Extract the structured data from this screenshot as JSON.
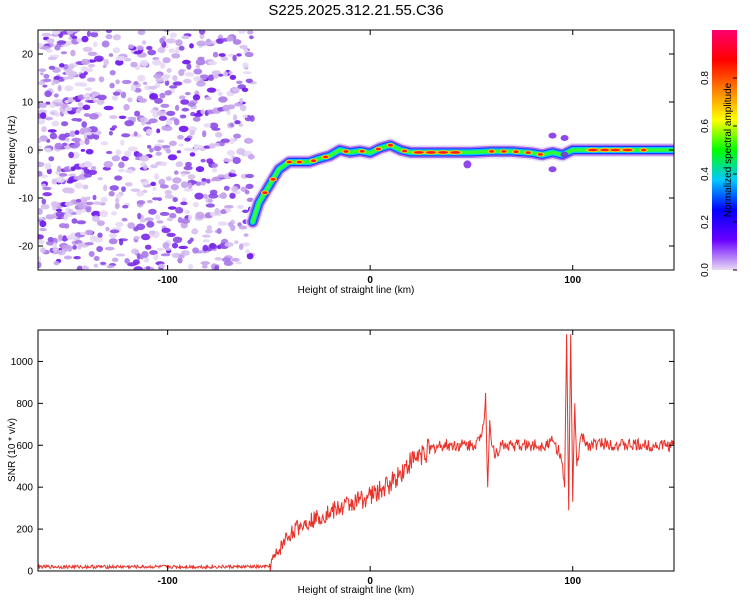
{
  "chart_data": [
    {
      "type": "heatmap",
      "title": "S225.2025.312.21.55.C36",
      "xlabel": "Height of straight line (km)",
      "ylabel": "Frequency (Hz)",
      "xlim": [
        -164,
        150
      ],
      "ylim": [
        -25,
        25
      ],
      "xticks": [
        -100,
        0,
        100
      ],
      "xtick_labels": [
        "-100",
        "0",
        "100"
      ],
      "yticks": [
        20,
        10,
        0,
        -10,
        -20
      ],
      "ytick_labels": [
        "20",
        "10",
        "0",
        "-10",
        "-20"
      ],
      "noise_region_x": [
        -164,
        -58
      ],
      "ridge": {
        "x": [
          -58,
          -55,
          -50,
          -45,
          -40,
          -35,
          -30,
          -25,
          -20,
          -15,
          -10,
          -5,
          0,
          5,
          10,
          15,
          20,
          30,
          40,
          50,
          60,
          70,
          80,
          85,
          90,
          95,
          100,
          110,
          120,
          130,
          140,
          150
        ],
        "freq": [
          -15,
          -11,
          -7.5,
          -4,
          -2.5,
          -2.5,
          -2.5,
          -1.8,
          -1.2,
          0,
          -0.5,
          -0.2,
          -0.6,
          0.4,
          1,
          0,
          -0.5,
          -0.5,
          -0.5,
          -0.5,
          -0.3,
          -0.3,
          -0.6,
          -1,
          -0.5,
          -1,
          0,
          0,
          0,
          0,
          0,
          0
        ]
      },
      "colorbar": {
        "label": "Normalized spectral amplitude",
        "ticks": [
          0.0,
          0.2,
          0.4,
          0.6,
          0.8
        ],
        "tick_labels": [
          "0.0",
          "0.2",
          "0.4",
          "0.6",
          "0.8"
        ],
        "range": [
          0,
          1
        ],
        "colors": [
          "#e9dcf4",
          "#6a00ff",
          "#0000ff",
          "#00c8ff",
          "#00ff00",
          "#ffff00",
          "#ff8000",
          "#ff0000",
          "#ff0070"
        ]
      }
    },
    {
      "type": "line",
      "xlabel": "Height of straight line (km)",
      "ylabel": "SNR (10 * v/v)",
      "xlim": [
        -164,
        150
      ],
      "ylim": [
        0,
        1150
      ],
      "xticks": [
        -100,
        0,
        100
      ],
      "xtick_labels": [
        "-100",
        "0",
        "100"
      ],
      "yticks": [
        0,
        200,
        400,
        600,
        800,
        1000
      ],
      "ytick_labels": [
        "0",
        "200",
        "400",
        "600",
        "800",
        "1000"
      ],
      "series": [
        {
          "name": "SNR",
          "color": "#e8322a",
          "x": [
            -164,
            -50,
            -46,
            -42,
            -38,
            -34,
            -30,
            -25,
            -20,
            -15,
            -10,
            -5,
            0,
            5,
            10,
            15,
            20,
            25,
            30,
            35,
            40,
            45,
            50,
            54,
            56,
            57,
            58,
            59,
            60,
            62,
            65,
            70,
            75,
            80,
            85,
            90,
            94,
            96,
            97,
            98,
            99,
            100,
            101,
            102,
            104,
            108,
            115,
            125,
            135,
            150
          ],
          "y": [
            20,
            20,
            80,
            150,
            190,
            220,
            240,
            260,
            280,
            300,
            320,
            340,
            360,
            380,
            420,
            470,
            520,
            560,
            580,
            600,
            600,
            600,
            600,
            620,
            700,
            850,
            400,
            720,
            600,
            560,
            600,
            600,
            600,
            600,
            600,
            620,
            560,
            400,
            1130,
            290,
            1130,
            330,
            800,
            500,
            640,
            600,
            610,
            600,
            600,
            600
          ]
        }
      ]
    }
  ]
}
